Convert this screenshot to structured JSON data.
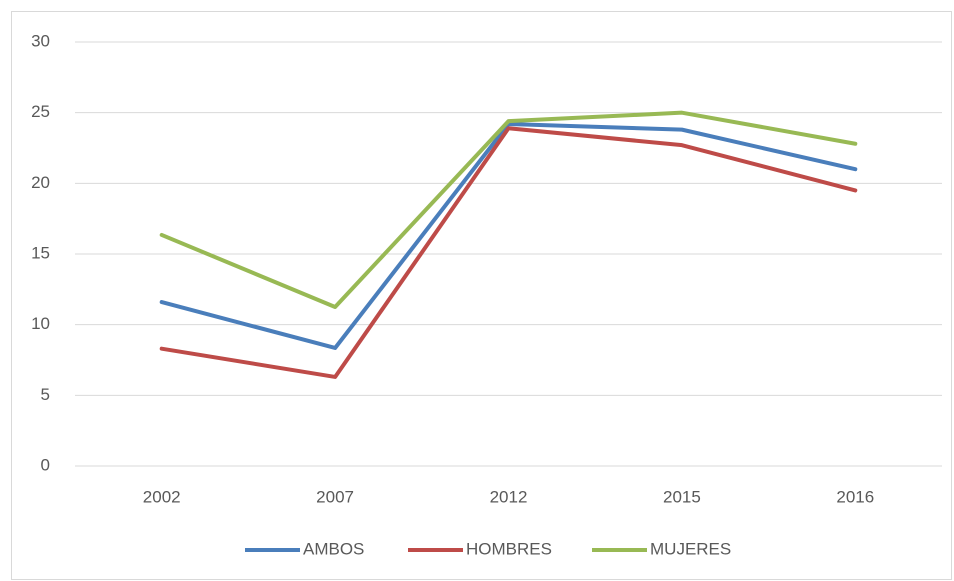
{
  "chart_data": {
    "type": "line",
    "categories": [
      "2002",
      "2007",
      "2012",
      "2015",
      "2016"
    ],
    "series": [
      {
        "name": "AMBOS",
        "color": "#4a7ebb",
        "values": [
          11.6,
          8.35,
          24.2,
          23.8,
          21.0
        ]
      },
      {
        "name": "HOMBRES",
        "color": "#be4b48",
        "values": [
          8.3,
          6.3,
          23.9,
          22.7,
          19.5
        ]
      },
      {
        "name": "MUJERES",
        "color": "#98b954",
        "values": [
          16.35,
          11.25,
          24.4,
          25.0,
          22.8
        ]
      }
    ],
    "ylim": [
      0,
      30
    ],
    "yticks": [
      0,
      5,
      10,
      15,
      20,
      25,
      30
    ],
    "grid": true,
    "legend": "bottom"
  }
}
